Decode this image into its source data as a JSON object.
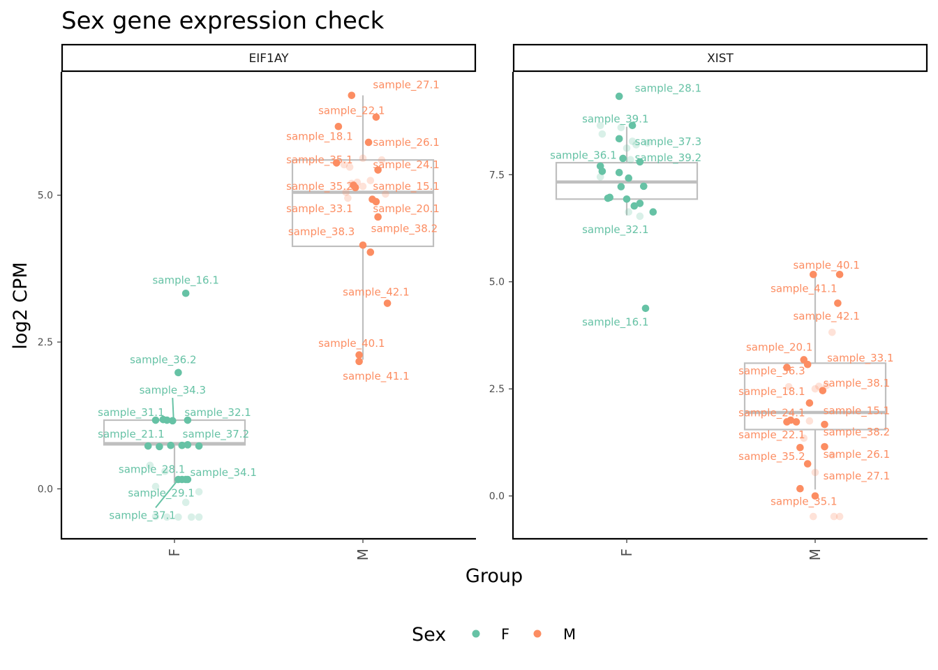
{
  "chart_data": {
    "type": "boxplot-jitter",
    "title": "Sex gene expression check",
    "xlabel": "Group",
    "ylabel": "log2 CPM",
    "colors": {
      "F": "#66c2a5",
      "M": "#fc8d62"
    },
    "legend": {
      "title": "Sex",
      "position": "bottom",
      "entries": [
        "F",
        "M"
      ]
    },
    "facets": [
      {
        "name": "EIF1AY",
        "ylim": [
          -0.85,
          7.1
        ],
        "yticks": [
          0.0,
          2.5,
          5.0
        ],
        "ytick_labels": [
          "0.0",
          "2.5",
          "5.0"
        ],
        "categories": [
          "F",
          "M"
        ],
        "boxes": [
          {
            "group": "F",
            "q1": 0.75,
            "median": 0.77,
            "q3": 1.17,
            "lo": 0.1,
            "hi": 1.2
          },
          {
            "group": "M",
            "q1": 4.13,
            "median": 5.05,
            "q3": 5.6,
            "lo": 2.2,
            "hi": 6.7
          }
        ],
        "points": [
          {
            "g": "F",
            "dx": 0.06,
            "y": 3.33,
            "label": "sample_16.1",
            "lx": 0.06,
            "ly": 3.55
          },
          {
            "g": "F",
            "dx": 0.02,
            "y": 1.98,
            "label": "sample_36.2",
            "lx": -0.06,
            "ly": 2.2
          },
          {
            "g": "F",
            "dx": -0.04,
            "y": 1.17,
            "label": "sample_34.3",
            "lx": -0.01,
            "ly": 1.68
          },
          {
            "g": "F",
            "dx": -0.1,
            "y": 1.17,
            "label": "sample_31.1",
            "lx": -0.23,
            "ly": 1.3
          },
          {
            "g": "F",
            "dx": -0.06,
            "y": 1.18
          },
          {
            "g": "F",
            "dx": -0.01,
            "y": 1.16
          },
          {
            "g": "F",
            "dx": 0.07,
            "y": 1.17,
            "label": "sample_32.1",
            "lx": 0.23,
            "ly": 1.3
          },
          {
            "g": "F",
            "dx": -0.14,
            "y": 0.73,
            "label": "sample_21.1",
            "lx": -0.23,
            "ly": 0.93
          },
          {
            "g": "F",
            "dx": -0.08,
            "y": 0.72
          },
          {
            "g": "F",
            "dx": -0.02,
            "y": 0.74
          },
          {
            "g": "F",
            "dx": 0.04,
            "y": 0.74
          },
          {
            "g": "F",
            "dx": 0.07,
            "y": 0.75
          },
          {
            "g": "F",
            "dx": 0.13,
            "y": 0.73,
            "label": "sample_37.2",
            "lx": 0.22,
            "ly": 0.93
          },
          {
            "g": "F",
            "dx": 0.02,
            "y": 0.16,
            "label": "sample_34.1",
            "lx": 0.26,
            "ly": 0.28
          },
          {
            "g": "F",
            "dx": 0.04,
            "y": 0.16
          },
          {
            "g": "F",
            "dx": 0.06,
            "y": 0.16
          },
          {
            "g": "F",
            "dx": 0.07,
            "y": 0.16
          },
          {
            "g": "F",
            "dx": -0.13,
            "y": 0.4,
            "alpha": 0.25,
            "label": "sample_28.1",
            "lx": -0.12,
            "ly": 0.33
          },
          {
            "g": "F",
            "dx": -0.05,
            "y": 0.3,
            "alpha": 0.25
          },
          {
            "g": "F",
            "dx": -0.1,
            "y": 0.04,
            "alpha": 0.25,
            "label": "sample_29.1",
            "lx": -0.07,
            "ly": -0.07
          },
          {
            "g": "F",
            "dx": 0.13,
            "y": -0.05,
            "alpha": 0.25
          },
          {
            "g": "F",
            "dx": 0.06,
            "y": -0.23,
            "alpha": 0.25
          },
          {
            "g": "F",
            "dx": -0.1,
            "y": -0.47,
            "alpha": 0.25,
            "label": "sample_37.1",
            "lx": -0.17,
            "ly": -0.45
          },
          {
            "g": "F",
            "dx": -0.04,
            "y": -0.48,
            "alpha": 0.25
          },
          {
            "g": "F",
            "dx": 0.02,
            "y": -0.48,
            "alpha": 0.25
          },
          {
            "g": "F",
            "dx": 0.09,
            "y": -0.48,
            "alpha": 0.25
          },
          {
            "g": "F",
            "dx": 0.13,
            "y": -0.48,
            "alpha": 0.25
          },
          {
            "g": "M",
            "dx": -0.06,
            "y": 6.7,
            "label": "sample_27.1",
            "lx": 0.23,
            "ly": 6.88
          },
          {
            "g": "M",
            "dx": 0.07,
            "y": 6.33,
            "label": "sample_22.1",
            "lx": -0.06,
            "ly": 6.44
          },
          {
            "g": "M",
            "dx": -0.13,
            "y": 6.17,
            "label": "sample_18.1",
            "lx": -0.23,
            "ly": 6.0
          },
          {
            "g": "M",
            "dx": 0.03,
            "y": 5.9,
            "label": "sample_26.1",
            "lx": 0.23,
            "ly": 5.9
          },
          {
            "g": "M",
            "dx": -0.14,
            "y": 5.55,
            "label": "sample_35.1",
            "lx": -0.23,
            "ly": 5.6
          },
          {
            "g": "M",
            "dx": 0.08,
            "y": 5.43,
            "label": "sample_24.1",
            "lx": 0.23,
            "ly": 5.52
          },
          {
            "g": "M",
            "dx": -0.05,
            "y": 5.17,
            "label": "sample_35.2",
            "lx": -0.23,
            "ly": 5.15
          },
          {
            "g": "M",
            "dx": -0.04,
            "y": 5.13,
            "label": "sample_15.1",
            "lx": 0.23,
            "ly": 5.15
          },
          {
            "g": "M",
            "dx": 0.05,
            "y": 4.93,
            "label": "sample_20.1",
            "lx": 0.23,
            "ly": 4.77
          },
          {
            "g": "M",
            "dx": 0.07,
            "y": 4.89
          },
          {
            "g": "M",
            "dx": 0.08,
            "y": 4.63,
            "label": "sample_33.1",
            "lx": -0.23,
            "ly": 4.77
          },
          {
            "g": "M",
            "dx": 0.0,
            "y": 4.15,
            "label": "sample_38.3",
            "lx": -0.22,
            "ly": 4.38
          },
          {
            "g": "M",
            "dx": 0.04,
            "y": 4.03,
            "label": "sample_38.2",
            "lx": 0.22,
            "ly": 4.43
          },
          {
            "g": "M",
            "dx": 0.13,
            "y": 3.16,
            "label": "sample_42.1",
            "lx": 0.07,
            "ly": 3.35
          },
          {
            "g": "M",
            "dx": -0.02,
            "y": 2.28,
            "label": "sample_40.1",
            "lx": -0.06,
            "ly": 2.48
          },
          {
            "g": "M",
            "dx": -0.02,
            "y": 2.17,
            "label": "sample_41.1",
            "lx": 0.07,
            "ly": 1.92
          },
          {
            "g": "M",
            "dx": -0.1,
            "y": 5.52,
            "alpha": 0.25
          },
          {
            "g": "M",
            "dx": -0.07,
            "y": 5.48,
            "alpha": 0.25
          },
          {
            "g": "M",
            "dx": -0.06,
            "y": 5.2,
            "alpha": 0.25
          },
          {
            "g": "M",
            "dx": -0.03,
            "y": 5.22,
            "alpha": 0.25
          },
          {
            "g": "M",
            "dx": 0.0,
            "y": 5.15,
            "alpha": 0.25
          },
          {
            "g": "M",
            "dx": -0.09,
            "y": 5.05,
            "alpha": 0.25
          },
          {
            "g": "M",
            "dx": 0.12,
            "y": 5.02,
            "alpha": 0.25
          },
          {
            "g": "M",
            "dx": -0.08,
            "y": 4.95,
            "alpha": 0.25
          },
          {
            "g": "M",
            "dx": 0.04,
            "y": 5.25,
            "alpha": 0.25
          },
          {
            "g": "M",
            "dx": 0.0,
            "y": 5.63,
            "alpha": 0.25
          },
          {
            "g": "M",
            "dx": 0.1,
            "y": 5.6,
            "alpha": 0.25
          }
        ],
        "connectors": [
          {
            "x1": -0.01,
            "y1": 1.55,
            "x2": -0.005,
            "y2": 1.2
          },
          {
            "x1": -0.1,
            "y1": -0.32,
            "x2": 0.02,
            "y2": 0.16
          }
        ]
      },
      {
        "name": "XIST",
        "ylim": [
          -1.0,
          9.9
        ],
        "yticks": [
          0.0,
          2.5,
          5.0,
          7.5
        ],
        "ytick_labels": [
          "0.0",
          "2.5",
          "5.0",
          "7.5"
        ],
        "categories": [
          "F",
          "M"
        ],
        "boxes": [
          {
            "group": "F",
            "q1": 6.93,
            "median": 7.33,
            "q3": 7.78,
            "lo": 6.55,
            "hi": 8.62
          },
          {
            "group": "M",
            "q1": 1.55,
            "median": 1.95,
            "q3": 3.1,
            "lo": 0.15,
            "hi": 5.22
          }
        ],
        "points": [
          {
            "g": "F",
            "dx": -0.04,
            "y": 9.33,
            "label": "sample_28.1",
            "lx": 0.22,
            "ly": 9.52
          },
          {
            "g": "F",
            "dx": 0.03,
            "y": 8.65,
            "label": "sample_39.1",
            "lx": -0.06,
            "ly": 8.8
          },
          {
            "g": "F",
            "dx": -0.04,
            "y": 8.34,
            "label": "sample_37.3",
            "lx": 0.22,
            "ly": 8.27
          },
          {
            "g": "F",
            "dx": 0.07,
            "y": 7.8,
            "label": "sample_39.2",
            "lx": 0.22,
            "ly": 7.9
          },
          {
            "g": "F",
            "dx": -0.14,
            "y": 7.7,
            "label": "sample_36.1",
            "lx": -0.23,
            "ly": 7.95
          },
          {
            "g": "F",
            "dx": -0.02,
            "y": 7.88
          },
          {
            "g": "F",
            "dx": -0.13,
            "y": 7.58
          },
          {
            "g": "F",
            "dx": -0.04,
            "y": 7.55
          },
          {
            "g": "F",
            "dx": 0.01,
            "y": 7.42
          },
          {
            "g": "F",
            "dx": -0.03,
            "y": 7.22
          },
          {
            "g": "F",
            "dx": 0.09,
            "y": 7.23
          },
          {
            "g": "F",
            "dx": -0.09,
            "y": 6.97
          },
          {
            "g": "F",
            "dx": -0.1,
            "y": 6.95
          },
          {
            "g": "F",
            "dx": 0.0,
            "y": 6.93
          },
          {
            "g": "F",
            "dx": 0.04,
            "y": 6.77
          },
          {
            "g": "F",
            "dx": 0.07,
            "y": 6.83
          },
          {
            "g": "F",
            "dx": 0.14,
            "y": 6.63,
            "label": "sample_32.1",
            "lx": -0.06,
            "ly": 6.22
          },
          {
            "g": "F",
            "dx": 0.1,
            "y": 4.38,
            "label": "sample_16.1",
            "lx": -0.06,
            "ly": 4.06
          },
          {
            "g": "F",
            "dx": -0.14,
            "y": 8.65,
            "alpha": 0.25
          },
          {
            "g": "F",
            "dx": -0.13,
            "y": 8.45,
            "alpha": 0.25
          },
          {
            "g": "F",
            "dx": -0.03,
            "y": 8.6,
            "alpha": 0.25
          },
          {
            "g": "F",
            "dx": 0.03,
            "y": 8.28,
            "alpha": 0.25
          },
          {
            "g": "F",
            "dx": 0.05,
            "y": 8.2,
            "alpha": 0.25
          },
          {
            "g": "F",
            "dx": 0.0,
            "y": 8.12,
            "alpha": 0.25
          },
          {
            "g": "F",
            "dx": 0.11,
            "y": 8.24,
            "alpha": 0.25
          },
          {
            "g": "F",
            "dx": 0.02,
            "y": 7.85,
            "alpha": 0.25
          },
          {
            "g": "F",
            "dx": -0.14,
            "y": 7.45,
            "alpha": 0.25
          },
          {
            "g": "F",
            "dx": 0.01,
            "y": 6.63,
            "alpha": 0.25
          },
          {
            "g": "F",
            "dx": 0.07,
            "y": 6.53,
            "alpha": 0.25
          },
          {
            "g": "M",
            "dx": -0.01,
            "y": 5.17,
            "label": "sample_40.1",
            "lx": 0.06,
            "ly": 5.39
          },
          {
            "g": "M",
            "dx": 0.13,
            "y": 5.17,
            "label": "sample_41.1",
            "lx": -0.06,
            "ly": 4.84
          },
          {
            "g": "M",
            "dx": 0.12,
            "y": 4.5,
            "label": "sample_42.1",
            "lx": 0.06,
            "ly": 4.2
          },
          {
            "g": "M",
            "dx": -0.06,
            "y": 3.18,
            "label": "sample_20.1",
            "lx": -0.19,
            "ly": 3.47
          },
          {
            "g": "M",
            "dx": -0.04,
            "y": 3.07,
            "label": "sample_33.1",
            "lx": 0.24,
            "ly": 3.22
          },
          {
            "g": "M",
            "dx": -0.15,
            "y": 3.0,
            "label": "sample_36.3",
            "lx": -0.23,
            "ly": 2.92
          },
          {
            "g": "M",
            "dx": 0.04,
            "y": 2.46,
            "label": "sample_18.1",
            "lx": -0.23,
            "ly": 2.44
          },
          {
            "g": "M",
            "dx": -0.03,
            "y": 2.17,
            "label": "sample_38.1",
            "lx": 0.22,
            "ly": 2.63
          },
          {
            "g": "M",
            "dx": -0.15,
            "y": 1.73,
            "label": "sample_24.1",
            "lx": -0.23,
            "ly": 1.94
          },
          {
            "g": "M",
            "dx": -0.13,
            "y": 1.77
          },
          {
            "g": "M",
            "dx": -0.1,
            "y": 1.73,
            "label": "sample_15.1",
            "lx": 0.22,
            "ly": 1.99
          },
          {
            "g": "M",
            "dx": 0.05,
            "y": 1.67,
            "label": "sample_38.2",
            "lx": 0.22,
            "ly": 1.49
          },
          {
            "g": "M",
            "dx": -0.08,
            "y": 1.13,
            "label": "sample_22.1",
            "lx": -0.23,
            "ly": 1.43
          },
          {
            "g": "M",
            "dx": 0.05,
            "y": 1.15,
            "label": "sample_26.1",
            "lx": 0.22,
            "ly": 0.97
          },
          {
            "g": "M",
            "dx": -0.04,
            "y": 0.75,
            "label": "sample_35.2",
            "lx": -0.23,
            "ly": 0.92
          },
          {
            "g": "M",
            "dx": -0.08,
            "y": 0.17,
            "label": "sample_27.1",
            "lx": 0.22,
            "ly": 0.47
          },
          {
            "g": "M",
            "dx": 0.0,
            "y": 0.0,
            "label": "sample_35.1",
            "lx": -0.06,
            "ly": -0.13
          },
          {
            "g": "M",
            "dx": 0.09,
            "y": 3.82,
            "alpha": 0.25
          },
          {
            "g": "M",
            "dx": -0.14,
            "y": 2.55,
            "alpha": 0.25
          },
          {
            "g": "M",
            "dx": 0.0,
            "y": 2.5,
            "alpha": 0.25
          },
          {
            "g": "M",
            "dx": 0.02,
            "y": 2.56,
            "alpha": 0.25
          },
          {
            "g": "M",
            "dx": 0.06,
            "y": 2.58,
            "alpha": 0.25
          },
          {
            "g": "M",
            "dx": -0.03,
            "y": 1.75,
            "alpha": 0.25
          },
          {
            "g": "M",
            "dx": -0.06,
            "y": 1.35,
            "alpha": 0.25
          },
          {
            "g": "M",
            "dx": 0.09,
            "y": 0.95,
            "alpha": 0.25
          },
          {
            "g": "M",
            "dx": 0.0,
            "y": 0.55,
            "alpha": 0.25
          },
          {
            "g": "M",
            "dx": -0.01,
            "y": -0.48,
            "alpha": 0.25
          },
          {
            "g": "M",
            "dx": 0.1,
            "y": -0.48,
            "alpha": 0.25
          },
          {
            "g": "M",
            "dx": 0.13,
            "y": -0.48,
            "alpha": 0.25
          }
        ],
        "connectors": []
      }
    ]
  }
}
